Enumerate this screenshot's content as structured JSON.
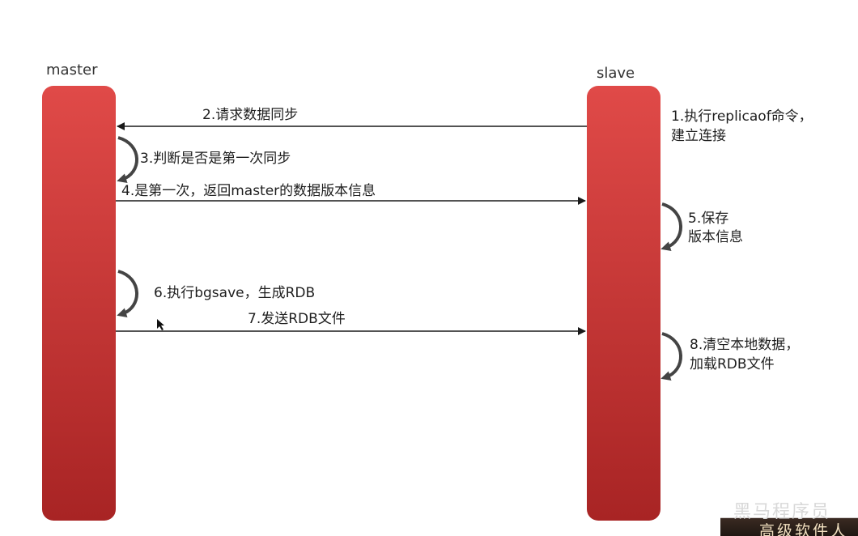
{
  "lifelines": {
    "master": "master",
    "slave": "slave"
  },
  "steps": {
    "s1_line1": "1.执行replicaof命令，",
    "s1_line2": "建立连接",
    "s2": "2.请求数据同步",
    "s3": "3.判断是否是第一次同步",
    "s4": "4.是第一次，返回master的数据版本信息",
    "s5_line1": "5.保存",
    "s5_line2": "版本信息",
    "s6": "6.执行bgsave，生成RDB",
    "s7": "7.发送RDB文件",
    "s8_line1": "8.清空本地数据，",
    "s8_line2": "加载RDB文件"
  },
  "watermark": {
    "top": "黑马程序员",
    "bottom": "高级软件人"
  },
  "colors": {
    "bar_top": "#e04a48",
    "bar_bottom": "#a82424",
    "arrow": "#1a1a1a",
    "self_arrow": "#444444"
  }
}
